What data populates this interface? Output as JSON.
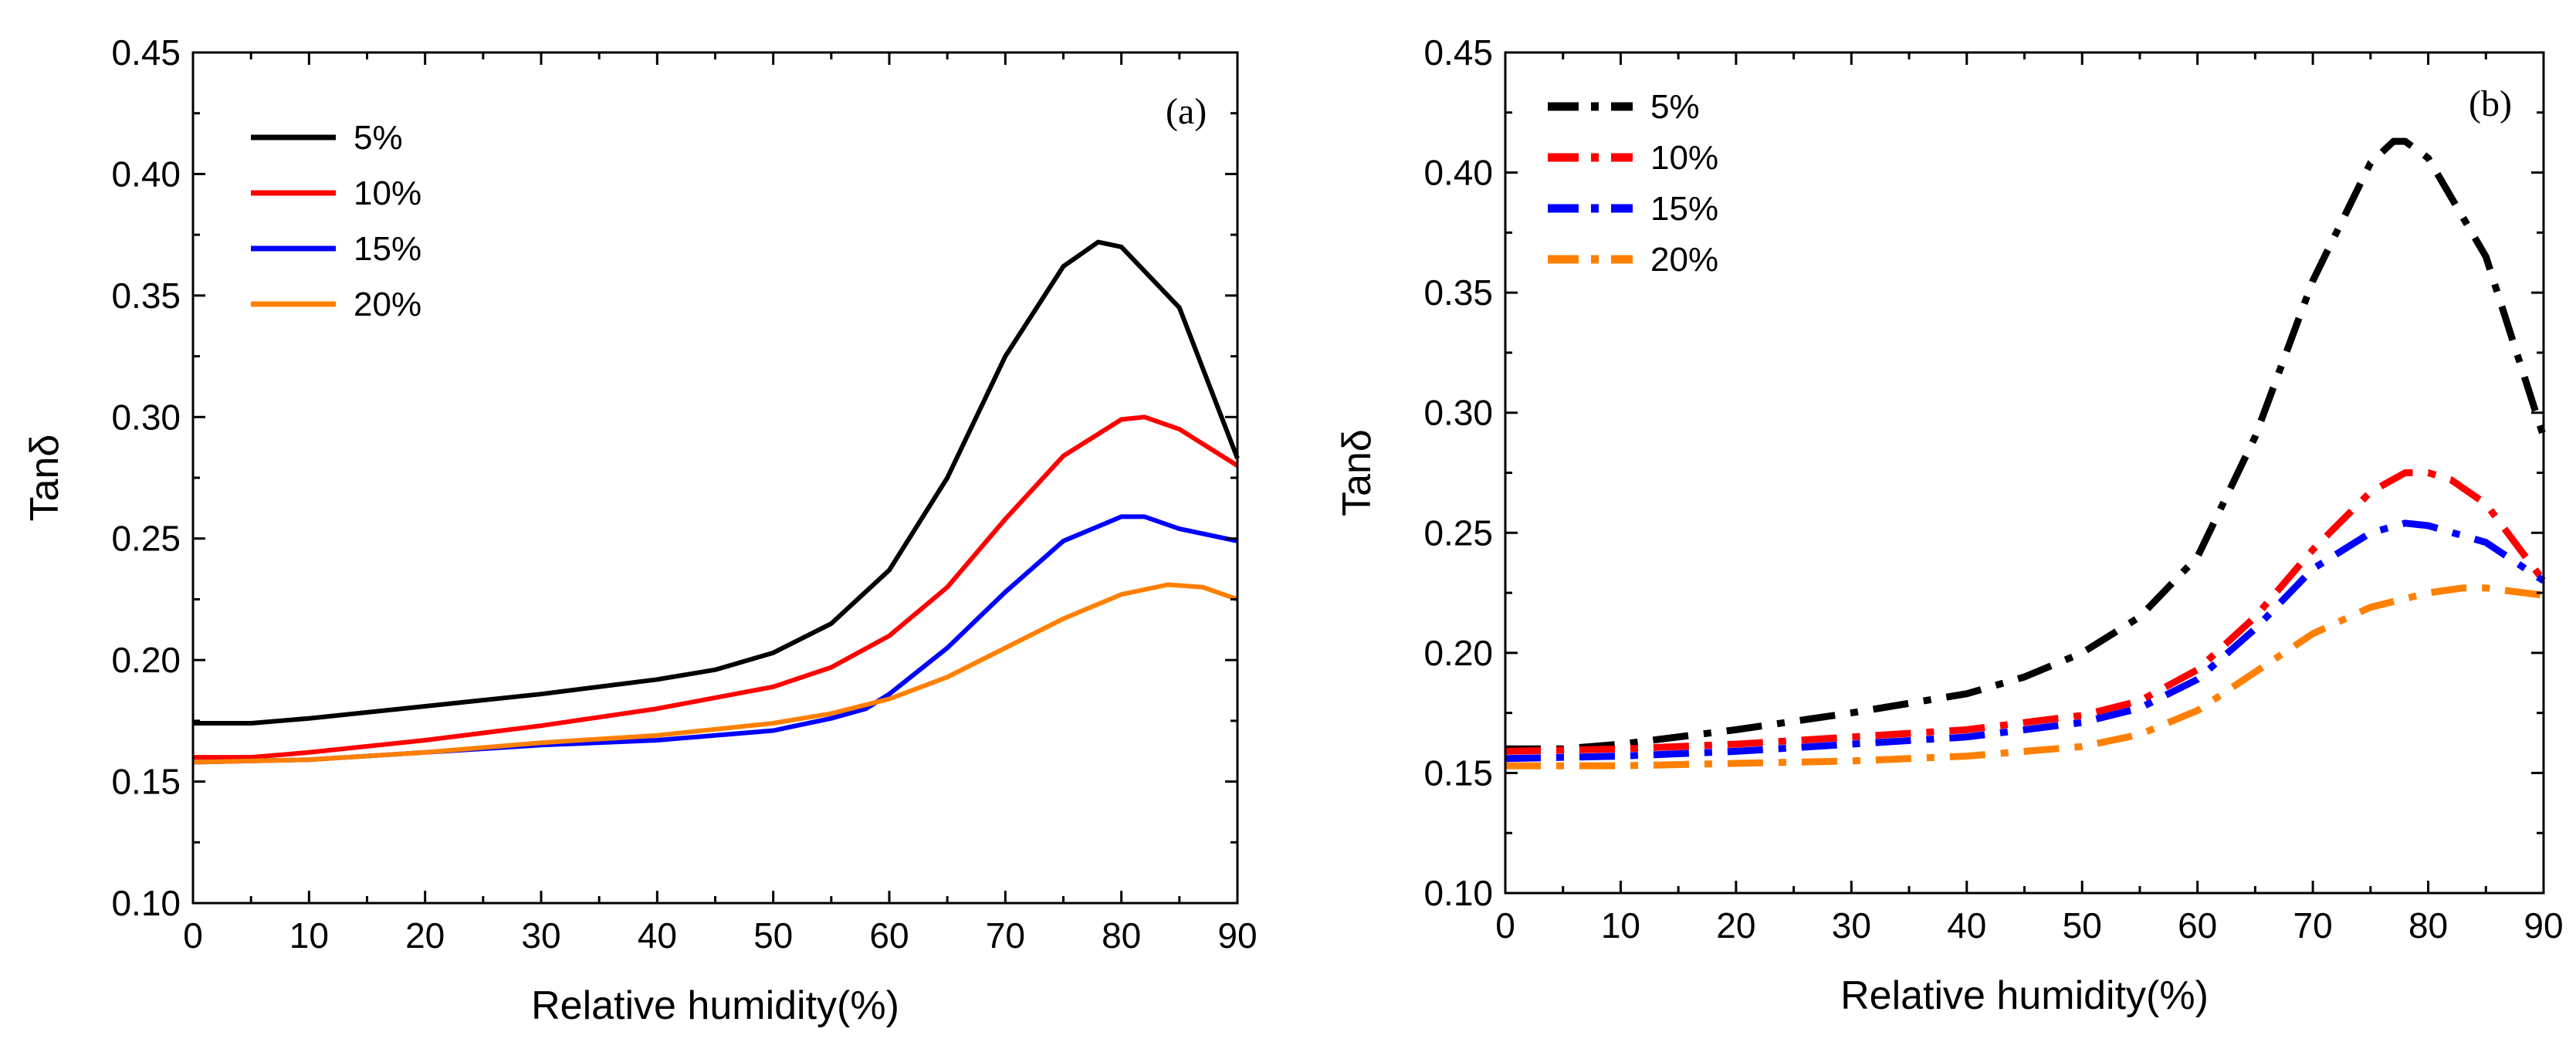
{
  "chart_data": [
    {
      "type": "line",
      "panel_label": "(a)",
      "xlabel": "Relative humidity(%)",
      "ylabel": "Tanδ",
      "xlim": [
        0,
        90
      ],
      "ylim": [
        0.1,
        0.45
      ],
      "xticks": [
        0,
        10,
        20,
        30,
        40,
        50,
        60,
        70,
        80,
        90
      ],
      "yticks": [
        0.1,
        0.15,
        0.2,
        0.25,
        0.3,
        0.35,
        0.4,
        0.45
      ],
      "ytick_labels": [
        "0.10",
        "0.15",
        "0.20",
        "0.25",
        "0.30",
        "0.35",
        "0.40",
        "0.45"
      ],
      "grid": false,
      "legend_position": "top-left",
      "line_style": "solid",
      "series": [
        {
          "name": "5%",
          "color": "#000000",
          "x": [
            0,
            5,
            10,
            20,
            30,
            40,
            45,
            50,
            55,
            60,
            65,
            70,
            75,
            78,
            80,
            85,
            90
          ],
          "y": [
            0.174,
            0.174,
            0.176,
            0.181,
            0.186,
            0.192,
            0.196,
            0.203,
            0.215,
            0.237,
            0.275,
            0.325,
            0.362,
            0.372,
            0.37,
            0.345,
            0.283
          ]
        },
        {
          "name": "10%",
          "color": "#ff0000",
          "x": [
            0,
            5,
            10,
            20,
            30,
            40,
            50,
            55,
            60,
            65,
            70,
            75,
            80,
            82,
            85,
            90
          ],
          "y": [
            0.16,
            0.16,
            0.162,
            0.167,
            0.173,
            0.18,
            0.189,
            0.197,
            0.21,
            0.23,
            0.258,
            0.284,
            0.299,
            0.3,
            0.295,
            0.28
          ]
        },
        {
          "name": "15%",
          "color": "#0000ff",
          "x": [
            0,
            10,
            20,
            30,
            40,
            50,
            55,
            58,
            60,
            65,
            70,
            75,
            80,
            82,
            85,
            90
          ],
          "y": [
            0.158,
            0.159,
            0.162,
            0.165,
            0.167,
            0.171,
            0.176,
            0.18,
            0.186,
            0.205,
            0.228,
            0.249,
            0.259,
            0.259,
            0.254,
            0.249
          ]
        },
        {
          "name": "20%",
          "color": "#ff8000",
          "x": [
            0,
            10,
            20,
            30,
            40,
            50,
            55,
            60,
            65,
            70,
            75,
            80,
            84,
            87,
            90
          ],
          "y": [
            0.158,
            0.159,
            0.162,
            0.166,
            0.169,
            0.174,
            0.178,
            0.184,
            0.193,
            0.205,
            0.217,
            0.227,
            0.231,
            0.23,
            0.225
          ]
        }
      ]
    },
    {
      "type": "line",
      "panel_label": "(b)",
      "xlabel": "Relative humidity(%)",
      "ylabel": "Tanδ",
      "xlim": [
        0,
        90
      ],
      "ylim": [
        0.1,
        0.45
      ],
      "xticks": [
        0,
        10,
        20,
        30,
        40,
        50,
        60,
        70,
        80,
        90
      ],
      "yticks": [
        0.1,
        0.15,
        0.2,
        0.25,
        0.3,
        0.35,
        0.4,
        0.45
      ],
      "ytick_labels": [
        "0.10",
        "0.15",
        "0.20",
        "0.25",
        "0.30",
        "0.35",
        "0.40",
        "0.45"
      ],
      "grid": false,
      "legend_position": "top-left",
      "line_style": "dash-dot",
      "series": [
        {
          "name": "5%",
          "color": "#000000",
          "x": [
            0,
            5,
            10,
            20,
            30,
            40,
            45,
            50,
            55,
            60,
            65,
            70,
            75,
            77,
            78,
            80,
            85,
            90
          ],
          "y": [
            0.16,
            0.16,
            0.162,
            0.168,
            0.175,
            0.183,
            0.19,
            0.2,
            0.215,
            0.24,
            0.29,
            0.355,
            0.404,
            0.413,
            0.413,
            0.406,
            0.365,
            0.29
          ]
        },
        {
          "name": "10%",
          "color": "#ff0000",
          "x": [
            0,
            10,
            20,
            30,
            40,
            50,
            55,
            60,
            65,
            70,
            75,
            78,
            80,
            82,
            85,
            90
          ],
          "y": [
            0.159,
            0.16,
            0.162,
            0.165,
            0.168,
            0.174,
            0.18,
            0.193,
            0.215,
            0.243,
            0.267,
            0.275,
            0.275,
            0.272,
            0.262,
            0.23
          ]
        },
        {
          "name": "15%",
          "color": "#0000ff",
          "x": [
            0,
            10,
            20,
            30,
            40,
            50,
            55,
            60,
            65,
            70,
            75,
            78,
            80,
            85,
            90
          ],
          "y": [
            0.156,
            0.157,
            0.159,
            0.162,
            0.165,
            0.171,
            0.177,
            0.189,
            0.21,
            0.235,
            0.25,
            0.254,
            0.253,
            0.246,
            0.23
          ]
        },
        {
          "name": "20%",
          "color": "#ff8000",
          "x": [
            0,
            10,
            20,
            30,
            40,
            50,
            55,
            60,
            65,
            70,
            75,
            80,
            83,
            85,
            90
          ],
          "y": [
            0.153,
            0.153,
            0.154,
            0.155,
            0.157,
            0.161,
            0.166,
            0.176,
            0.192,
            0.208,
            0.219,
            0.225,
            0.227,
            0.227,
            0.224
          ]
        }
      ]
    }
  ]
}
